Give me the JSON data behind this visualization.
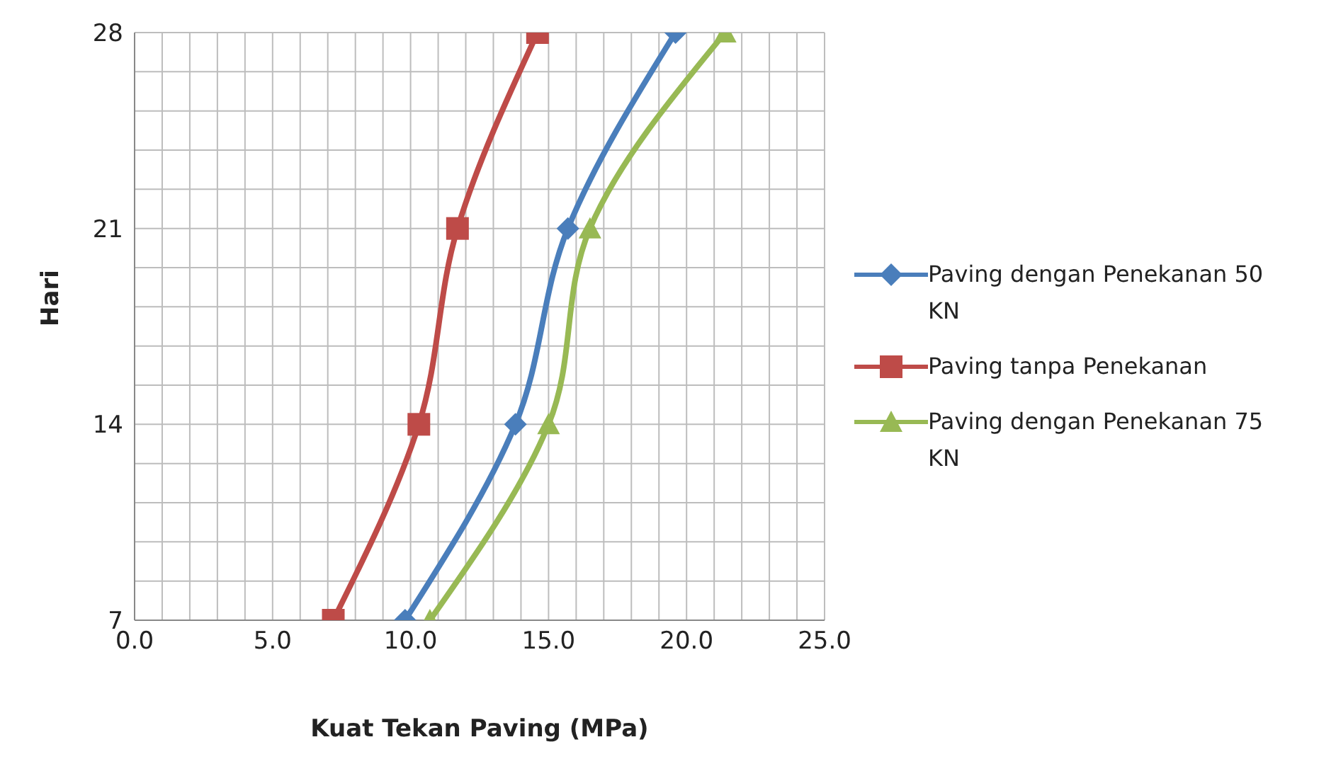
{
  "chart_data": {
    "type": "line",
    "xlabel": "Kuat Tekan Paving (MPa)",
    "ylabel": "Hari",
    "xlim": [
      0,
      25
    ],
    "xticks": [
      {
        "value": 0,
        "label": "0.0"
      },
      {
        "value": 1,
        "label": null
      },
      {
        "value": 2,
        "label": null
      },
      {
        "value": 3,
        "label": null
      },
      {
        "value": 4,
        "label": null
      },
      {
        "value": 5,
        "label": "5.0"
      },
      {
        "value": 6,
        "label": null
      },
      {
        "value": 7,
        "label": null
      },
      {
        "value": 8,
        "label": null
      },
      {
        "value": 9,
        "label": null
      },
      {
        "value": 10,
        "label": "10.0"
      },
      {
        "value": 11,
        "label": null
      },
      {
        "value": 12,
        "label": null
      },
      {
        "value": 13,
        "label": null
      },
      {
        "value": 14,
        "label": null
      },
      {
        "value": 15,
        "label": "15.0"
      },
      {
        "value": 16,
        "label": null
      },
      {
        "value": 17,
        "label": null
      },
      {
        "value": 18,
        "label": null
      },
      {
        "value": 19,
        "label": null
      },
      {
        "value": 20,
        "label": "20.0"
      },
      {
        "value": 21,
        "label": null
      },
      {
        "value": 22,
        "label": null
      },
      {
        "value": 23,
        "label": null
      },
      {
        "value": 24,
        "label": null
      },
      {
        "value": 25,
        "label": "25.0"
      }
    ],
    "ylim": [
      7,
      28
    ],
    "yticks": [
      7,
      {
        "value": 8.4,
        "label": null
      },
      {
        "value": 9.8,
        "label": null
      },
      {
        "value": 11.2,
        "label": null
      },
      {
        "value": 12.6,
        "label": null
      },
      14,
      {
        "value": 15.4,
        "label": null
      },
      {
        "value": 16.8,
        "label": null
      },
      {
        "value": 18.2,
        "label": null
      },
      {
        "value": 19.6,
        "label": null
      },
      21,
      {
        "value": 22.4,
        "label": null
      },
      {
        "value": 23.8,
        "label": null
      },
      {
        "value": 25.2,
        "label": null
      },
      {
        "value": 26.6,
        "label": null
      },
      28
    ],
    "grid": true,
    "legend": "right",
    "series": [
      {
        "name": "Paving dengan Penekanan 50 KN",
        "color": "#4a7ebb",
        "marker": "diamond",
        "x": [
          9.8,
          13.8,
          15.7,
          19.6
        ],
        "values": [
          7,
          14,
          21,
          28
        ]
      },
      {
        "name": "Paving tanpa Penekanan",
        "color": "#be4b48",
        "marker": "square",
        "x": [
          7.2,
          10.3,
          11.7,
          14.6
        ],
        "values": [
          7,
          14,
          21,
          28
        ]
      },
      {
        "name": "Paving dengan Penekanan 75 KN",
        "color": "#98b954",
        "marker": "triangle",
        "x": [
          10.7,
          15.0,
          16.5,
          21.4
        ],
        "values": [
          7,
          14,
          21,
          28
        ]
      }
    ]
  }
}
